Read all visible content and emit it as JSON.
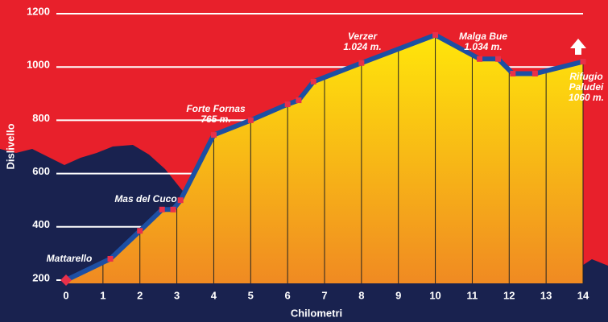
{
  "chart_data": {
    "type": "area",
    "xlabel": "Chilometri",
    "ylabel": "Dislivello",
    "x": [
      0,
      1.2,
      2,
      2.6,
      2.9,
      3.1,
      4,
      5,
      6,
      6.3,
      6.7,
      8,
      10,
      11.2,
      11.7,
      12.1,
      12.7,
      14
    ],
    "values": [
      200,
      280,
      385,
      465,
      465,
      500,
      745,
      800,
      860,
      875,
      945,
      1015,
      1120,
      1030,
      1030,
      975,
      975,
      1020
    ],
    "color": "#1d4fa3",
    "xlim": [
      0,
      14
    ],
    "xticks": [
      0,
      1,
      2,
      3,
      4,
      5,
      6,
      7,
      8,
      9,
      10,
      11,
      12,
      13,
      14
    ],
    "ylim": [
      200,
      1200
    ],
    "yticks": [
      200,
      400,
      600,
      800,
      1000,
      1200
    ],
    "grid": true,
    "annotations": [
      [
        "Mattarello"
      ],
      [
        "Mas del Cuco"
      ],
      [
        "Forte Fornas",
        "765 m."
      ],
      [
        "Verzer",
        "1.024 m."
      ],
      [
        "Malga Bue",
        "1.034 m."
      ],
      [
        "Rifugio",
        "Paludei",
        "1060 m."
      ]
    ]
  }
}
